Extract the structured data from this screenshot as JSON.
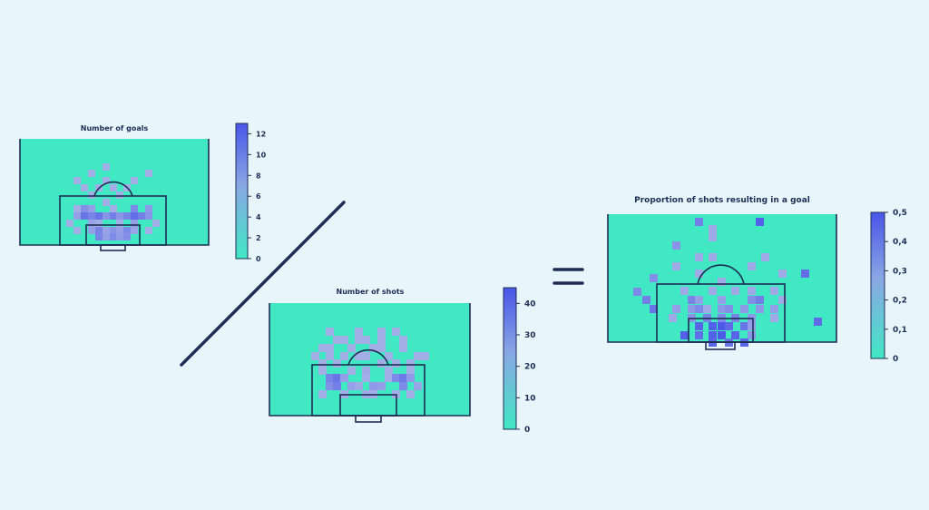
{
  "colors": {
    "background": "#e8f6fc",
    "pitch": "#40e8c4",
    "lines": "#1f2d55",
    "low": "#b4bee6",
    "high": "#4855e8"
  },
  "chart_data": [
    {
      "type": "heatmap",
      "title": "Number of goals",
      "colorbar_ticks": [
        "0",
        "2",
        "4",
        "6",
        "8",
        "10",
        "12"
      ],
      "vmin": 0,
      "vmax": 13
    },
    {
      "type": "heatmap",
      "title": "Number of shots",
      "colorbar_ticks": [
        "0",
        "10",
        "20",
        "30",
        "40"
      ],
      "vmin": 0,
      "vmax": 45
    },
    {
      "type": "heatmap",
      "title": "Proportion of shots resulting in a goal",
      "colorbar_ticks": [
        "0",
        "0,1",
        "0,2",
        "0,3",
        "0,4",
        "0,5"
      ],
      "vmin": 0,
      "vmax": 0.5
    }
  ],
  "operators": {
    "divide": "divide-sign",
    "equals": "equals-sign"
  }
}
